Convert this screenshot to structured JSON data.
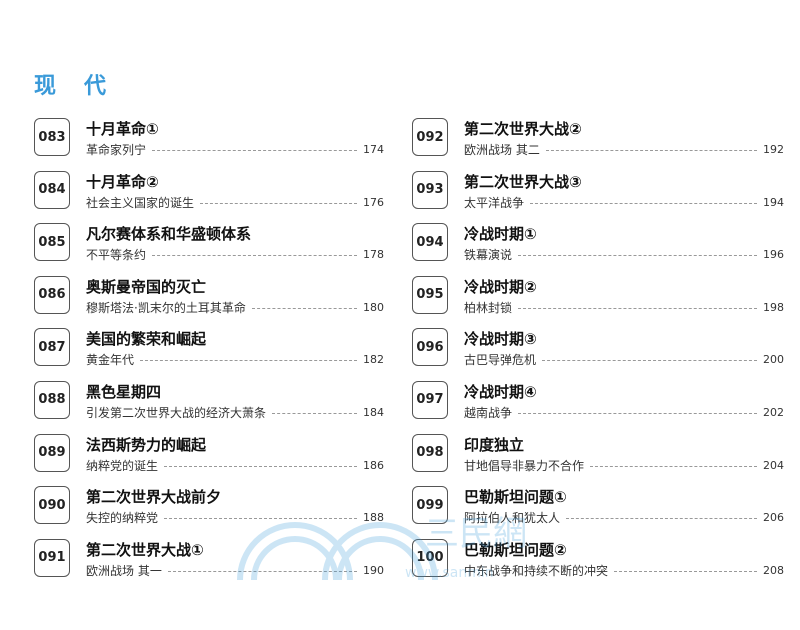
{
  "section_title": "现代",
  "left_entries": [
    {
      "num": "083",
      "title": "十月革命①",
      "sub": "革命家列宁",
      "page": "174"
    },
    {
      "num": "084",
      "title": "十月革命②",
      "sub": "社会主义国家的诞生",
      "page": "176"
    },
    {
      "num": "085",
      "title": "凡尔赛体系和华盛顿体系",
      "sub": "不平等条约",
      "page": "178"
    },
    {
      "num": "086",
      "title": "奥斯曼帝国的灭亡",
      "sub": "穆斯塔法·凯末尔的土耳其革命",
      "page": "180"
    },
    {
      "num": "087",
      "title": "美国的繁荣和崛起",
      "sub": "黄金年代",
      "page": "182"
    },
    {
      "num": "088",
      "title": "黑色星期四",
      "sub": "引发第二次世界大战的经济大萧条",
      "page": "184"
    },
    {
      "num": "089",
      "title": "法西斯势力的崛起",
      "sub": "纳粹党的诞生",
      "page": "186"
    },
    {
      "num": "090",
      "title": "第二次世界大战前夕",
      "sub": "失控的纳粹党",
      "page": "188"
    },
    {
      "num": "091",
      "title": "第二次世界大战①",
      "sub": "欧洲战场 其一",
      "page": "190"
    }
  ],
  "right_entries": [
    {
      "num": "092",
      "title": "第二次世界大战②",
      "sub": "欧洲战场 其二",
      "page": "192"
    },
    {
      "num": "093",
      "title": "第二次世界大战③",
      "sub": "太平洋战争",
      "page": "194"
    },
    {
      "num": "094",
      "title": "冷战时期①",
      "sub": "铁幕演说",
      "page": "196"
    },
    {
      "num": "095",
      "title": "冷战时期②",
      "sub": "柏林封锁",
      "page": "198"
    },
    {
      "num": "096",
      "title": "冷战时期③",
      "sub": "古巴导弹危机",
      "page": "200"
    },
    {
      "num": "097",
      "title": "冷战时期④",
      "sub": "越南战争",
      "page": "202"
    },
    {
      "num": "098",
      "title": "印度独立",
      "sub": "甘地倡导非暴力不合作",
      "page": "204"
    },
    {
      "num": "099",
      "title": "巴勒斯坦问题①",
      "sub": "阿拉伯人和犹太人",
      "page": "206"
    },
    {
      "num": "100",
      "title": "巴勒斯坦问题②",
      "sub": "中东战争和持续不断的冲突",
      "page": "208"
    }
  ],
  "watermark": {
    "text": "三民網路書店",
    "chars": [
      "三",
      "民"
    ],
    "url": "www.sanmin",
    "color": "#3a9ad9"
  },
  "colors": {
    "accent": "#3a9ad9"
  }
}
